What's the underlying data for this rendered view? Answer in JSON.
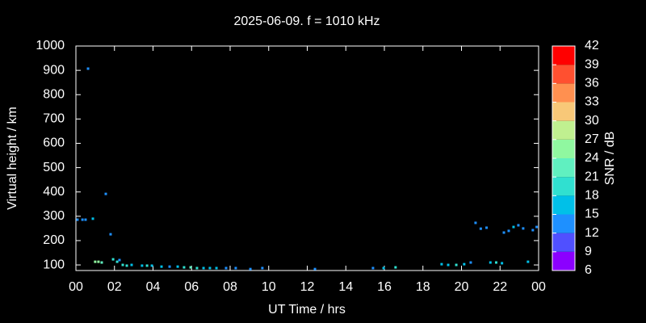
{
  "chart_data": {
    "type": "scatter",
    "title": "2025-06-09. f = 1010 kHz",
    "x_label": "UT Time / hrs",
    "y_label": "Virtual height / km",
    "colorbar_label": "SNR / dB",
    "x": [
      0.08,
      0.34,
      0.5,
      0.63,
      0.88,
      1.0,
      1.17,
      1.34,
      1.55,
      1.8,
      1.93,
      2.14,
      2.26,
      2.43,
      2.64,
      2.89,
      3.43,
      3.69,
      3.94,
      4.44,
      4.86,
      5.28,
      5.61,
      5.95,
      6.28,
      6.62,
      6.95,
      7.29,
      7.79,
      8.29,
      9.05,
      9.67,
      12.4,
      15.41,
      15.96,
      16.58,
      18.97,
      19.31,
      19.73,
      20.14,
      20.48,
      20.73,
      21.0,
      21.3,
      21.5,
      21.8,
      22.1,
      22.2,
      22.45,
      22.7,
      22.95,
      23.2,
      23.45,
      23.7,
      23.9
    ],
    "values": [
      286,
      286,
      286,
      907,
      290,
      113,
      113,
      110,
      392,
      226,
      123,
      113,
      120,
      100,
      97,
      100,
      97,
      97,
      97,
      93,
      93,
      93,
      90,
      90,
      87,
      87,
      87,
      87,
      87,
      87,
      83,
      87,
      83,
      87,
      87,
      90,
      103,
      100,
      100,
      103,
      110,
      273,
      249,
      253,
      110,
      110,
      107,
      233,
      240,
      256,
      263,
      250,
      113,
      243,
      256
    ],
    "snr": [
      13,
      13,
      13,
      13,
      16,
      24,
      24,
      22,
      12,
      13,
      20,
      19,
      13,
      18,
      20,
      17,
      15,
      19,
      17,
      15,
      14,
      15,
      20,
      22,
      18,
      17,
      15,
      16,
      14,
      13,
      13,
      12,
      13,
      13,
      15,
      20,
      16,
      17,
      20,
      15,
      14,
      13,
      14,
      13,
      16,
      18,
      17,
      14,
      13,
      15,
      14,
      13,
      17,
      14,
      13
    ],
    "xlim": [
      0,
      24
    ],
    "xticks": [
      {
        "value": 0,
        "label": "00"
      },
      {
        "value": 2,
        "label": "02"
      },
      {
        "value": 4,
        "label": "04"
      },
      {
        "value": 6,
        "label": "06"
      },
      {
        "value": 8,
        "label": "08"
      },
      10,
      12,
      14,
      16,
      18,
      20,
      22,
      {
        "value": 24,
        "label": "00"
      }
    ],
    "ylim": [
      77,
      1000
    ],
    "yticks": [
      100,
      200,
      300,
      400,
      500,
      600,
      700,
      800,
      900,
      1000
    ],
    "clim": [
      6,
      42
    ],
    "cticks": [
      6,
      9,
      12,
      15,
      18,
      21,
      24,
      27,
      30,
      33,
      36,
      39,
      42
    ],
    "colormap": [
      "#8b00ff",
      "#5050ff",
      "#1e90ff",
      "#00c0e8",
      "#30e0d0",
      "#60f0c0",
      "#90f8a0",
      "#c0f090",
      "#f8c878",
      "#ff9050",
      "#ff5030",
      "#ff0000"
    ]
  }
}
